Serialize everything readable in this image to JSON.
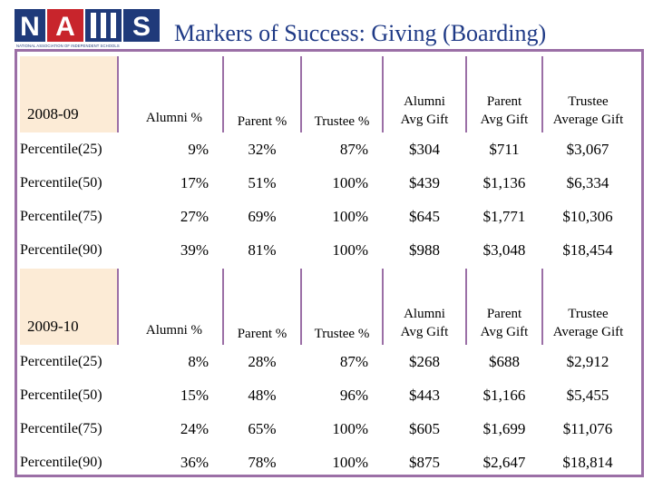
{
  "logo": {
    "letters": "NAIS",
    "caption": "NATIONAL ASSOCIATION OF INDEPENDENT SCHOOLS"
  },
  "title": "Markers of Success: Giving (Boarding)",
  "columns": {
    "alumni_pct": "Alumni %",
    "parent_pct": "Parent %",
    "trustee_pct": "Trustee %",
    "alumni_avg_1": "Alumni",
    "alumni_avg_2": "Avg Gift",
    "parent_avg_1": "Parent",
    "parent_avg_2": "Avg Gift",
    "trustee_avg_1": "Trustee",
    "trustee_avg_2": "Average Gift"
  },
  "blocks": [
    {
      "year": "2008-09",
      "rows": [
        {
          "label": "Percentile(25)",
          "alumni_pct": "9%",
          "parent_pct": "32%",
          "trustee_pct": "87%",
          "alumni_avg": "$304",
          "parent_avg": "$711",
          "trustee_avg": "$3,067"
        },
        {
          "label": "Percentile(50)",
          "alumni_pct": "17%",
          "parent_pct": "51%",
          "trustee_pct": "100%",
          "alumni_avg": "$439",
          "parent_avg": "$1,136",
          "trustee_avg": "$6,334"
        },
        {
          "label": "Percentile(75)",
          "alumni_pct": "27%",
          "parent_pct": "69%",
          "trustee_pct": "100%",
          "alumni_avg": "$645",
          "parent_avg": "$1,771",
          "trustee_avg": "$10,306"
        },
        {
          "label": "Percentile(90)",
          "alumni_pct": "39%",
          "parent_pct": "81%",
          "trustee_pct": "100%",
          "alumni_avg": "$988",
          "parent_avg": "$3,048",
          "trustee_avg": "$18,454"
        }
      ]
    },
    {
      "year": "2009-10",
      "rows": [
        {
          "label": "Percentile(25)",
          "alumni_pct": "8%",
          "parent_pct": "28%",
          "trustee_pct": "87%",
          "alumni_avg": "$268",
          "parent_avg": "$688",
          "trustee_avg": "$2,912"
        },
        {
          "label": "Percentile(50)",
          "alumni_pct": "15%",
          "parent_pct": "48%",
          "trustee_pct": "96%",
          "alumni_avg": "$443",
          "parent_avg": "$1,166",
          "trustee_avg": "$5,455"
        },
        {
          "label": "Percentile(75)",
          "alumni_pct": "24%",
          "parent_pct": "65%",
          "trustee_pct": "100%",
          "alumni_avg": "$605",
          "parent_avg": "$1,699",
          "trustee_avg": "$11,076"
        },
        {
          "label": "Percentile(90)",
          "alumni_pct": "36%",
          "parent_pct": "78%",
          "trustee_pct": "100%",
          "alumni_avg": "$875",
          "parent_avg": "$2,647",
          "trustee_avg": "$18,814"
        }
      ]
    }
  ],
  "colors": {
    "frame": "#9b6fa6",
    "label_fill": "#fcebd6",
    "title": "#1f3a86",
    "logo_blue": "#1f3a7a",
    "logo_red": "#c8252c"
  }
}
